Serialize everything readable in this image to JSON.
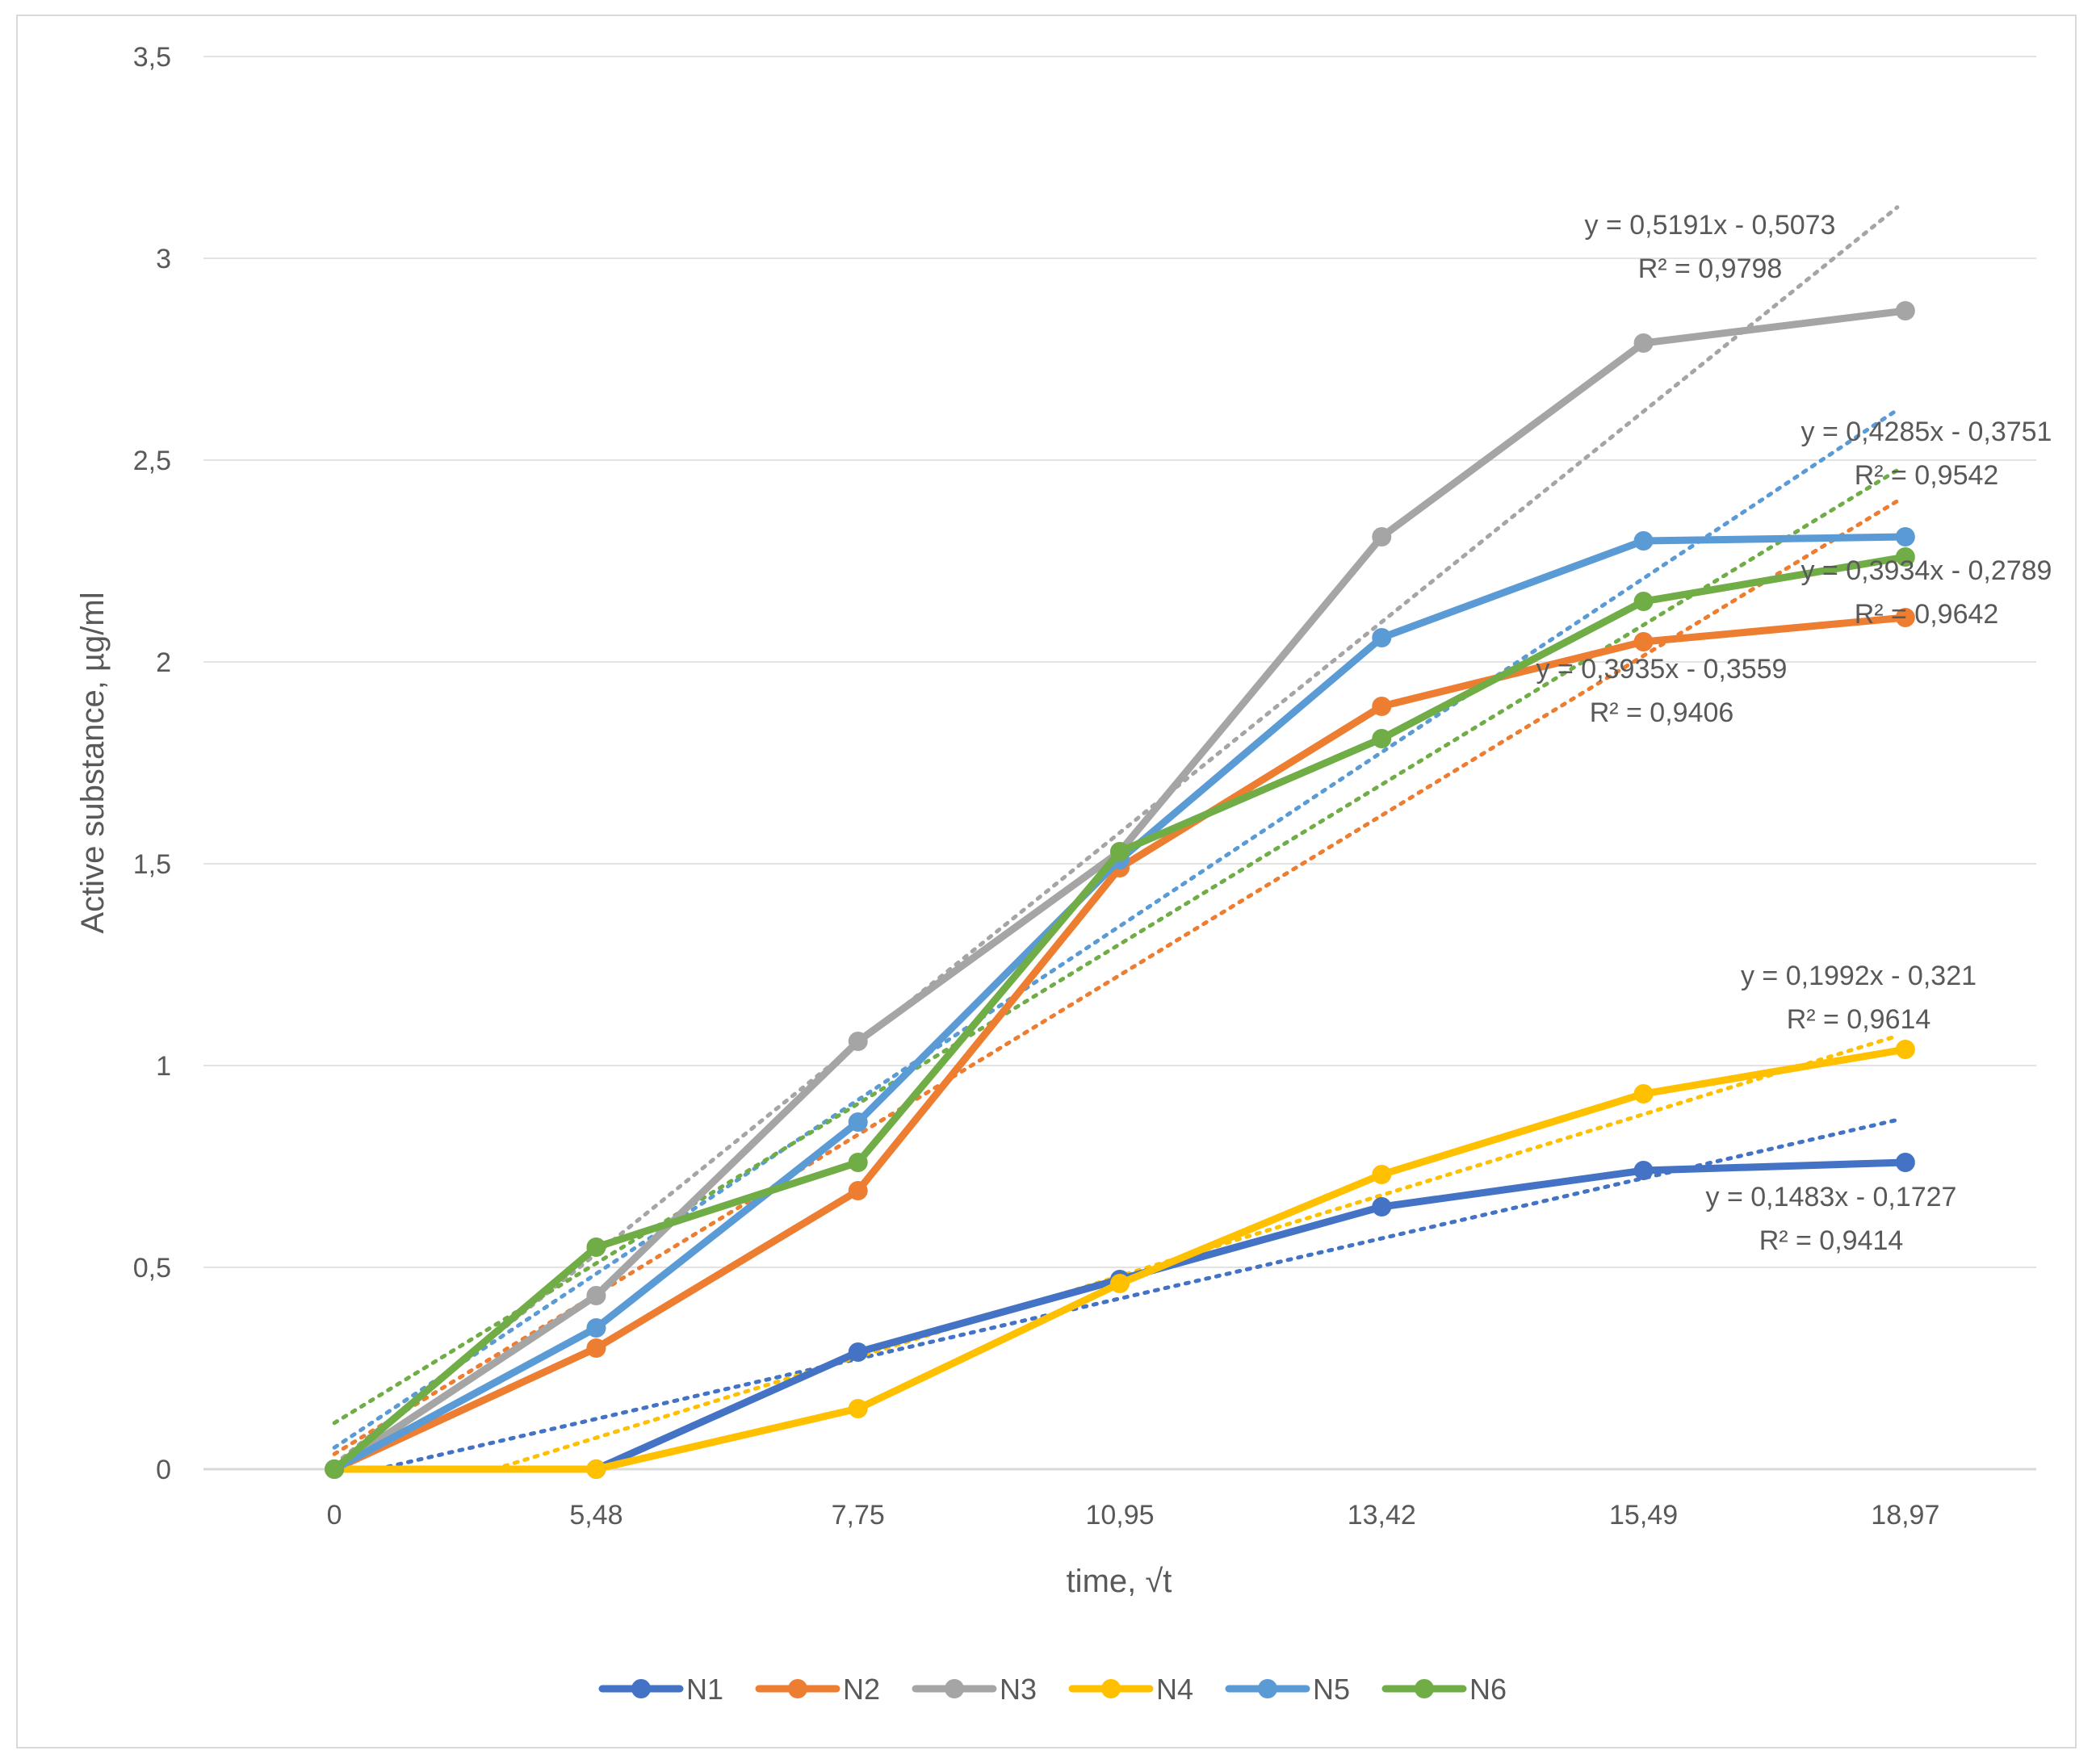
{
  "chart_data": {
    "type": "line",
    "title": "",
    "xlabel": "time, √t",
    "ylabel": "Active substance, µg/ml",
    "categories": [
      "0",
      "5,48",
      "7,75",
      "10,95",
      "13,42",
      "15,49",
      "18,97"
    ],
    "ylim": [
      0,
      3.5
    ],
    "yticks": [
      "0",
      "0,5",
      "1",
      "1,5",
      "2",
      "2,5",
      "3",
      "3,5"
    ],
    "grid": true,
    "legend": "bottom",
    "series": [
      {
        "name": "N1",
        "color": "#4472C4",
        "values": [
          0,
          0,
          0.29,
          0.47,
          0.65,
          0.74,
          0.76
        ],
        "trend": {
          "slope": 0.1483,
          "intercept": -0.1727,
          "equation": "y = 0,1483x - 0,1727",
          "r2": "R² = 0,9414"
        }
      },
      {
        "name": "N2",
        "color": "#ED7D31",
        "values": [
          0,
          0.3,
          0.69,
          1.49,
          1.89,
          2.05,
          2.11
        ],
        "trend": {
          "slope": 0.3935,
          "intercept": -0.3559,
          "equation": "y = 0,3935x - 0,3559",
          "r2": "R² = 0,9406"
        }
      },
      {
        "name": "N3",
        "color": "#A5A5A5",
        "values": [
          0,
          0.43,
          1.06,
          1.53,
          2.31,
          2.79,
          2.87
        ],
        "trend": {
          "slope": 0.5191,
          "intercept": -0.5073,
          "equation": "y = 0,5191x - 0,5073",
          "r2": "R² = 0,9798"
        }
      },
      {
        "name": "N4",
        "color": "#FFC000",
        "values": [
          0,
          0,
          0.15,
          0.46,
          0.73,
          0.93,
          1.04
        ],
        "trend": {
          "slope": 0.1992,
          "intercept": -0.321,
          "equation": "y = 0,1992x - 0,321",
          "r2": "R² = 0,9614"
        }
      },
      {
        "name": "N5",
        "color": "#5B9BD5",
        "values": [
          0,
          0.35,
          0.86,
          1.51,
          2.06,
          2.3,
          2.31
        ],
        "trend": {
          "slope": 0.4285,
          "intercept": -0.3751,
          "equation": "y = 0,4285x - 0,3751",
          "r2": "R² = 0,9542"
        }
      },
      {
        "name": "N6",
        "color": "#70AD47",
        "values": [
          0,
          0.55,
          0.76,
          1.53,
          1.81,
          2.15,
          2.26
        ],
        "trend": {
          "slope": 0.3934,
          "intercept": -0.2789,
          "equation": "y = 0,3934x - 0,2789",
          "r2": "R² = 0,9642"
        }
      }
    ]
  }
}
